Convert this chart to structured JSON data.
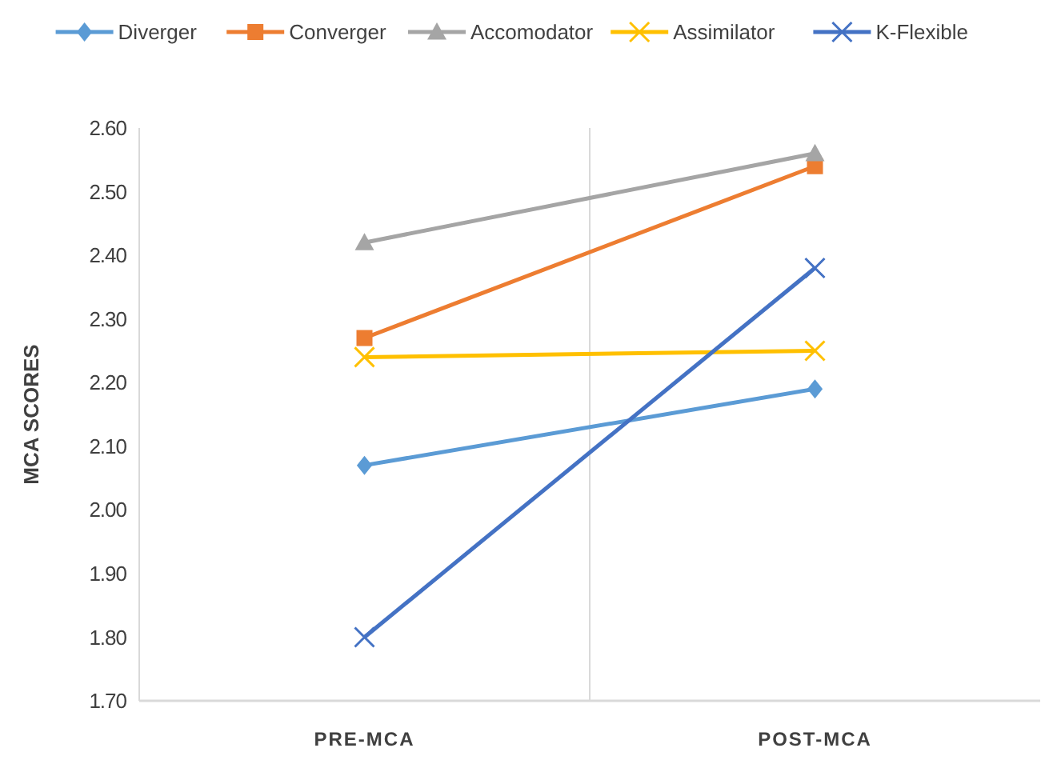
{
  "chart_data": {
    "type": "line",
    "ylabel": "MCA SCORES",
    "categories": [
      "PRE-MCA",
      "POST-MCA"
    ],
    "series": [
      {
        "name": "Diverger",
        "color": "#5b9bd5",
        "values": [
          2.07,
          2.19
        ],
        "marker": "diamond"
      },
      {
        "name": "Converger",
        "color": "#ed7d31",
        "values": [
          2.27,
          2.54
        ],
        "marker": "square"
      },
      {
        "name": "Accomodator",
        "color": "#a5a5a5",
        "values": [
          2.42,
          2.56
        ],
        "marker": "triangle"
      },
      {
        "name": "Assimilator",
        "color": "#ffc000",
        "values": [
          2.24,
          2.25
        ],
        "marker": "cross"
      },
      {
        "name": "K-Flexible",
        "color": "#4472c4",
        "values": [
          1.8,
          2.38
        ],
        "marker": "cross"
      }
    ],
    "ylim": [
      1.7,
      2.6
    ],
    "yticks": [
      {
        "value": 1.7,
        "label": "1.70"
      },
      {
        "value": 1.8,
        "label": "1.80"
      },
      {
        "value": 1.9,
        "label": "1.90"
      },
      {
        "value": 2.0,
        "label": "2.00"
      },
      {
        "value": 2.1,
        "label": "2.10"
      },
      {
        "value": 2.2,
        "label": "2.20"
      },
      {
        "value": 2.3,
        "label": "2.30"
      },
      {
        "value": 2.4,
        "label": "2.40"
      },
      {
        "value": 2.5,
        "label": "2.50"
      },
      {
        "value": 2.6,
        "label": "2.60"
      }
    ],
    "grid": "x",
    "legend": "top",
    "line_style": "solid"
  }
}
